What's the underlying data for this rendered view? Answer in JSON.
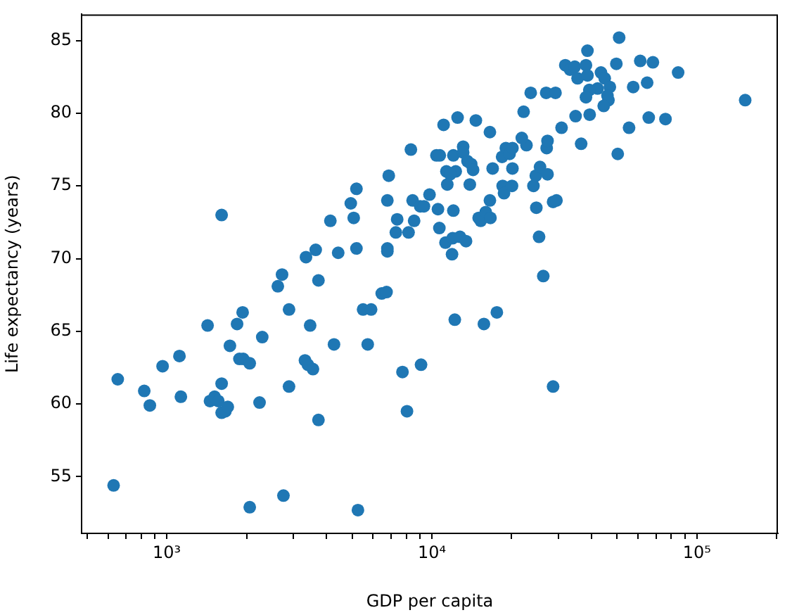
{
  "chart_data": {
    "type": "scatter",
    "xlabel": "GDP per capita",
    "ylabel": "Life expectancy (years)",
    "log": "x",
    "grid": false,
    "marker": "circle",
    "xlim": [
      477,
      202000
    ],
    "ylim": [
      51.1,
      86.8
    ],
    "xticks": [
      {
        "value": 500,
        "label": null
      },
      {
        "value": 600,
        "label": null
      },
      {
        "value": 700,
        "label": null
      },
      {
        "value": 800,
        "label": null
      },
      {
        "value": 900,
        "label": null
      },
      {
        "value": 1000,
        "label": "10³"
      },
      {
        "value": 2000,
        "label": null
      },
      {
        "value": 3000,
        "label": null
      },
      {
        "value": 4000,
        "label": null
      },
      {
        "value": 5000,
        "label": null
      },
      {
        "value": 6000,
        "label": null
      },
      {
        "value": 7000,
        "label": null
      },
      {
        "value": 8000,
        "label": null
      },
      {
        "value": 9000,
        "label": null
      },
      {
        "value": 10000,
        "label": "10⁴"
      },
      {
        "value": 20000,
        "label": null
      },
      {
        "value": 30000,
        "label": null
      },
      {
        "value": 40000,
        "label": null
      },
      {
        "value": 50000,
        "label": null
      },
      {
        "value": 60000,
        "label": null
      },
      {
        "value": 70000,
        "label": null
      },
      {
        "value": 80000,
        "label": null
      },
      {
        "value": 90000,
        "label": null
      },
      {
        "value": 100000,
        "label": "10⁵"
      },
      {
        "value": 200000,
        "label": null
      }
    ],
    "yticks": [
      55,
      60,
      65,
      70,
      75,
      80,
      85
    ],
    "series": [
      {
        "color": "#1f77b4",
        "x": [
          630,
          653,
          822,
          863,
          964,
          1116,
          1130,
          1425,
          1455,
          1514,
          1564,
          1610,
          1610,
          1664,
          1698,
          1730,
          1841,
          1932,
          1879,
          1942,
          2055,
          2055,
          2291,
          2238,
          2623,
          2721,
          2754,
          2891,
          2891,
          3473,
          3321,
          3406,
          3559,
          3733,
          3733,
          1610,
          3350,
          3645,
          4431,
          5192,
          6792,
          6792,
          4140,
          4943,
          5070,
          5192,
          6792,
          6875,
          7396,
          7311,
          8164,
          8570,
          8457,
          9036,
          9333,
          9795,
          10540,
          12050,
          10670,
          11250,
          11970,
          12760,
          13450,
          11910,
          8332,
          10400,
          10710,
          12050,
          13120,
          13120,
          13620,
          14070,
          14300,
          11340,
          12300,
          11720,
          11430,
          13900,
          16950,
          11070,
          12500,
          14650,
          16550,
          23590,
          26980,
          22180,
          15010,
          15280,
          15960,
          16630,
          16550,
          18490,
          18710,
          20050,
          18400,
          19010,
          19640,
          20130,
          22740,
          21830,
          20130,
          24160,
          24660,
          25580,
          27300,
          27100,
          27300,
          28650,
          24770,
          25370,
          26310,
          29510,
          29260,
          50860,
          38620,
          31860,
          33190,
          34590,
          38120,
          35450,
          38620,
          43420,
          49640,
          61090,
          68190,
          84890,
          44870,
          46910,
          42170,
          39250,
          38120,
          45950,
          46340,
          44480,
          57460,
          64860,
          152000,
          34840,
          39370,
          30840,
          55430,
          65770,
          76060,
          36560,
          50240,
          28650,
          6467,
          6745,
          5500,
          5898,
          4273,
          5727,
          7745,
          9100,
          8054,
          5260,
          12200,
          15710,
          17580
        ],
        "values": [
          54.4,
          61.7,
          60.9,
          59.9,
          62.6,
          63.3,
          60.5,
          65.4,
          60.2,
          60.5,
          60.2,
          61.4,
          59.4,
          59.5,
          59.8,
          64.0,
          65.5,
          66.3,
          63.1,
          63.1,
          62.8,
          52.9,
          64.6,
          60.1,
          68.1,
          68.9,
          53.7,
          66.5,
          61.2,
          65.4,
          63.0,
          62.7,
          62.4,
          58.9,
          68.5,
          73.0,
          70.1,
          70.6,
          70.4,
          70.7,
          70.7,
          70.5,
          72.6,
          73.8,
          72.8,
          74.8,
          74.0,
          75.7,
          72.7,
          71.8,
          71.8,
          72.6,
          74.0,
          73.6,
          73.6,
          74.4,
          73.4,
          73.3,
          72.1,
          71.1,
          71.4,
          71.5,
          71.2,
          70.3,
          77.5,
          77.1,
          77.1,
          77.1,
          77.7,
          77.3,
          76.7,
          76.5,
          76.1,
          76.0,
          76.0,
          75.8,
          75.1,
          75.1,
          76.2,
          79.2,
          79.7,
          79.5,
          78.7,
          81.4,
          81.4,
          80.1,
          72.8,
          72.6,
          73.2,
          72.8,
          74.0,
          75.0,
          74.5,
          75.0,
          77.0,
          77.6,
          77.2,
          77.6,
          77.8,
          78.3,
          76.2,
          75.0,
          75.7,
          76.3,
          75.8,
          77.6,
          78.1,
          73.9,
          73.5,
          71.5,
          68.8,
          74.0,
          81.4,
          85.2,
          84.3,
          83.3,
          83.0,
          83.2,
          83.3,
          82.4,
          82.6,
          82.8,
          83.4,
          83.6,
          83.5,
          82.8,
          82.4,
          81.8,
          81.7,
          81.6,
          81.1,
          81.2,
          80.9,
          80.5,
          81.8,
          82.1,
          80.9,
          79.8,
          79.9,
          79.0,
          79.0,
          79.7,
          79.6,
          77.9,
          77.2,
          61.2,
          67.6,
          67.7,
          66.5,
          66.5,
          64.1,
          64.1,
          62.2,
          62.7,
          59.5,
          52.7,
          65.8,
          65.5,
          66.3
        ]
      }
    ]
  }
}
